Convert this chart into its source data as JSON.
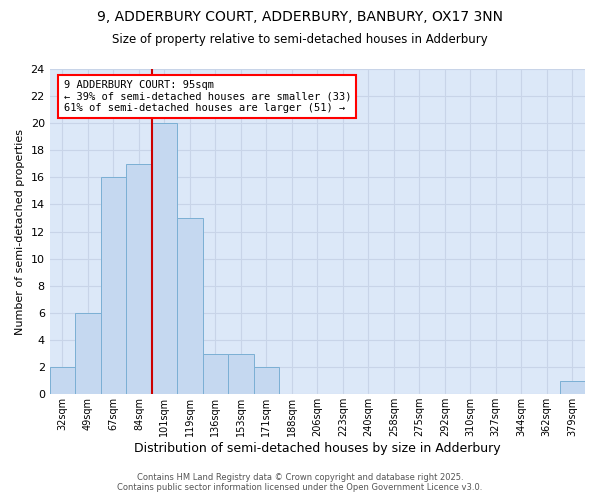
{
  "title1": "9, ADDERBURY COURT, ADDERBURY, BANBURY, OX17 3NN",
  "title2": "Size of property relative to semi-detached houses in Adderbury",
  "xlabel": "Distribution of semi-detached houses by size in Adderbury",
  "ylabel": "Number of semi-detached properties",
  "bin_labels": [
    "32sqm",
    "49sqm",
    "67sqm",
    "84sqm",
    "101sqm",
    "119sqm",
    "136sqm",
    "153sqm",
    "171sqm",
    "188sqm",
    "206sqm",
    "223sqm",
    "240sqm",
    "258sqm",
    "275sqm",
    "292sqm",
    "310sqm",
    "327sqm",
    "344sqm",
    "362sqm",
    "379sqm"
  ],
  "bar_heights": [
    2,
    6,
    16,
    17,
    20,
    13,
    3,
    3,
    2,
    0,
    0,
    0,
    0,
    0,
    0,
    0,
    0,
    0,
    0,
    0,
    1
  ],
  "bar_color": "#c5d8f0",
  "bar_edge_color": "#7bafd4",
  "vline_index": 4,
  "vline_color": "#cc0000",
  "ylim": [
    0,
    24
  ],
  "yticks": [
    0,
    2,
    4,
    6,
    8,
    10,
    12,
    14,
    16,
    18,
    20,
    22,
    24
  ],
  "annotation_title": "9 ADDERBURY COURT: 95sqm",
  "annotation_line1": "← 39% of semi-detached houses are smaller (33)",
  "annotation_line2": "61% of semi-detached houses are larger (51) →",
  "footer1": "Contains HM Land Registry data © Crown copyright and database right 2025.",
  "footer2": "Contains public sector information licensed under the Open Government Licence v3.0.",
  "grid_color": "#c8d4e8",
  "background_color": "#dce8f8"
}
